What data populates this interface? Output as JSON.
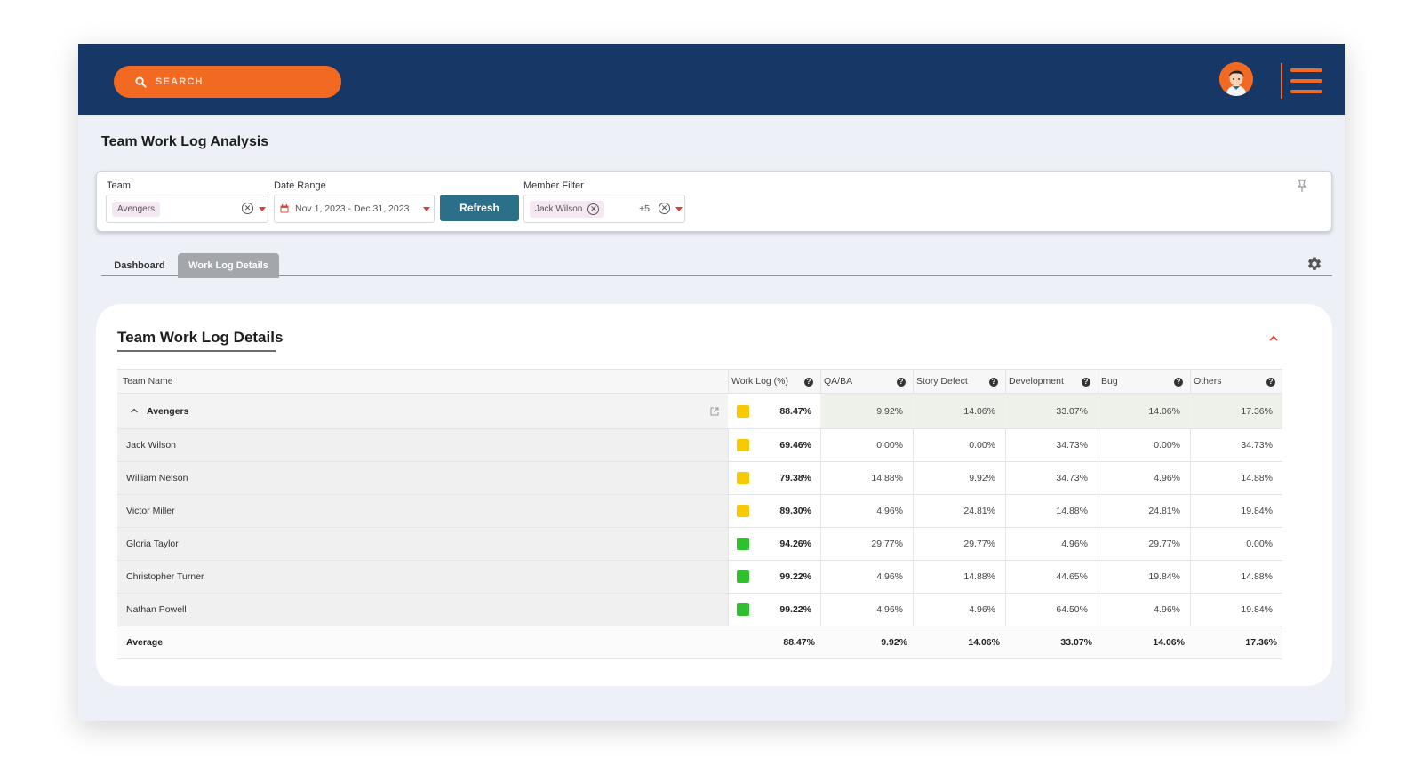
{
  "header": {
    "search_placeholder": "SEARCH"
  },
  "page": {
    "title": "Team Work Log Analysis"
  },
  "filters": {
    "team_label": "Team",
    "team_value": "Avengers",
    "date_label": "Date Range",
    "date_value": "Nov 1, 2023 - Dec 31, 2023",
    "refresh_label": "Refresh",
    "member_label": "Member Filter",
    "member_value": "Jack Wilson",
    "member_more": "+5"
  },
  "tabs": [
    {
      "label": "Dashboard"
    },
    {
      "label": "Work Log Details"
    }
  ],
  "card": {
    "title": "Team Work Log Details"
  },
  "table": {
    "columns": [
      "Team Name",
      "Work Log (%)",
      "QA/BA",
      "Story Defect",
      "Development",
      "Bug",
      "Others"
    ],
    "group": {
      "name": "Avengers",
      "status": "#f7c900",
      "work_log": "88.47%",
      "qa_ba": "9.92%",
      "story_defect": "14.06%",
      "development": "33.07%",
      "bug": "14.06%",
      "others": "17.36%"
    },
    "rows": [
      {
        "name": "Jack Wilson",
        "status": "#f7c900",
        "work_log": "69.46%",
        "qa_ba": "0.00%",
        "story_defect": "0.00%",
        "development": "34.73%",
        "bug": "0.00%",
        "others": "34.73%"
      },
      {
        "name": "William Nelson",
        "status": "#f7c900",
        "work_log": "79.38%",
        "qa_ba": "14.88%",
        "story_defect": "9.92%",
        "development": "34.73%",
        "bug": "4.96%",
        "others": "14.88%"
      },
      {
        "name": "Victor Miller",
        "status": "#f7c900",
        "work_log": "89.30%",
        "qa_ba": "4.96%",
        "story_defect": "24.81%",
        "development": "14.88%",
        "bug": "24.81%",
        "others": "19.84%"
      },
      {
        "name": "Gloria Taylor",
        "status": "#2fbf2f",
        "work_log": "94.26%",
        "qa_ba": "29.77%",
        "story_defect": "29.77%",
        "development": "4.96%",
        "bug": "29.77%",
        "others": "0.00%"
      },
      {
        "name": "Christopher Turner",
        "status": "#2fbf2f",
        "work_log": "99.22%",
        "qa_ba": "4.96%",
        "story_defect": "14.88%",
        "development": "44.65%",
        "bug": "19.84%",
        "others": "14.88%"
      },
      {
        "name": "Nathan Powell",
        "status": "#2fbf2f",
        "work_log": "99.22%",
        "qa_ba": "4.96%",
        "story_defect": "4.96%",
        "development": "64.50%",
        "bug": "4.96%",
        "others": "19.84%"
      }
    ],
    "average": {
      "label": "Average",
      "work_log": "88.47%",
      "qa_ba": "9.92%",
      "story_defect": "14.06%",
      "development": "33.07%",
      "bug": "14.06%",
      "others": "17.36%"
    }
  },
  "colors": {
    "navy": "#173766",
    "orange": "#f26a21",
    "teal": "#2b6f88",
    "yellow": "#f7c900",
    "green": "#2fbf2f"
  }
}
